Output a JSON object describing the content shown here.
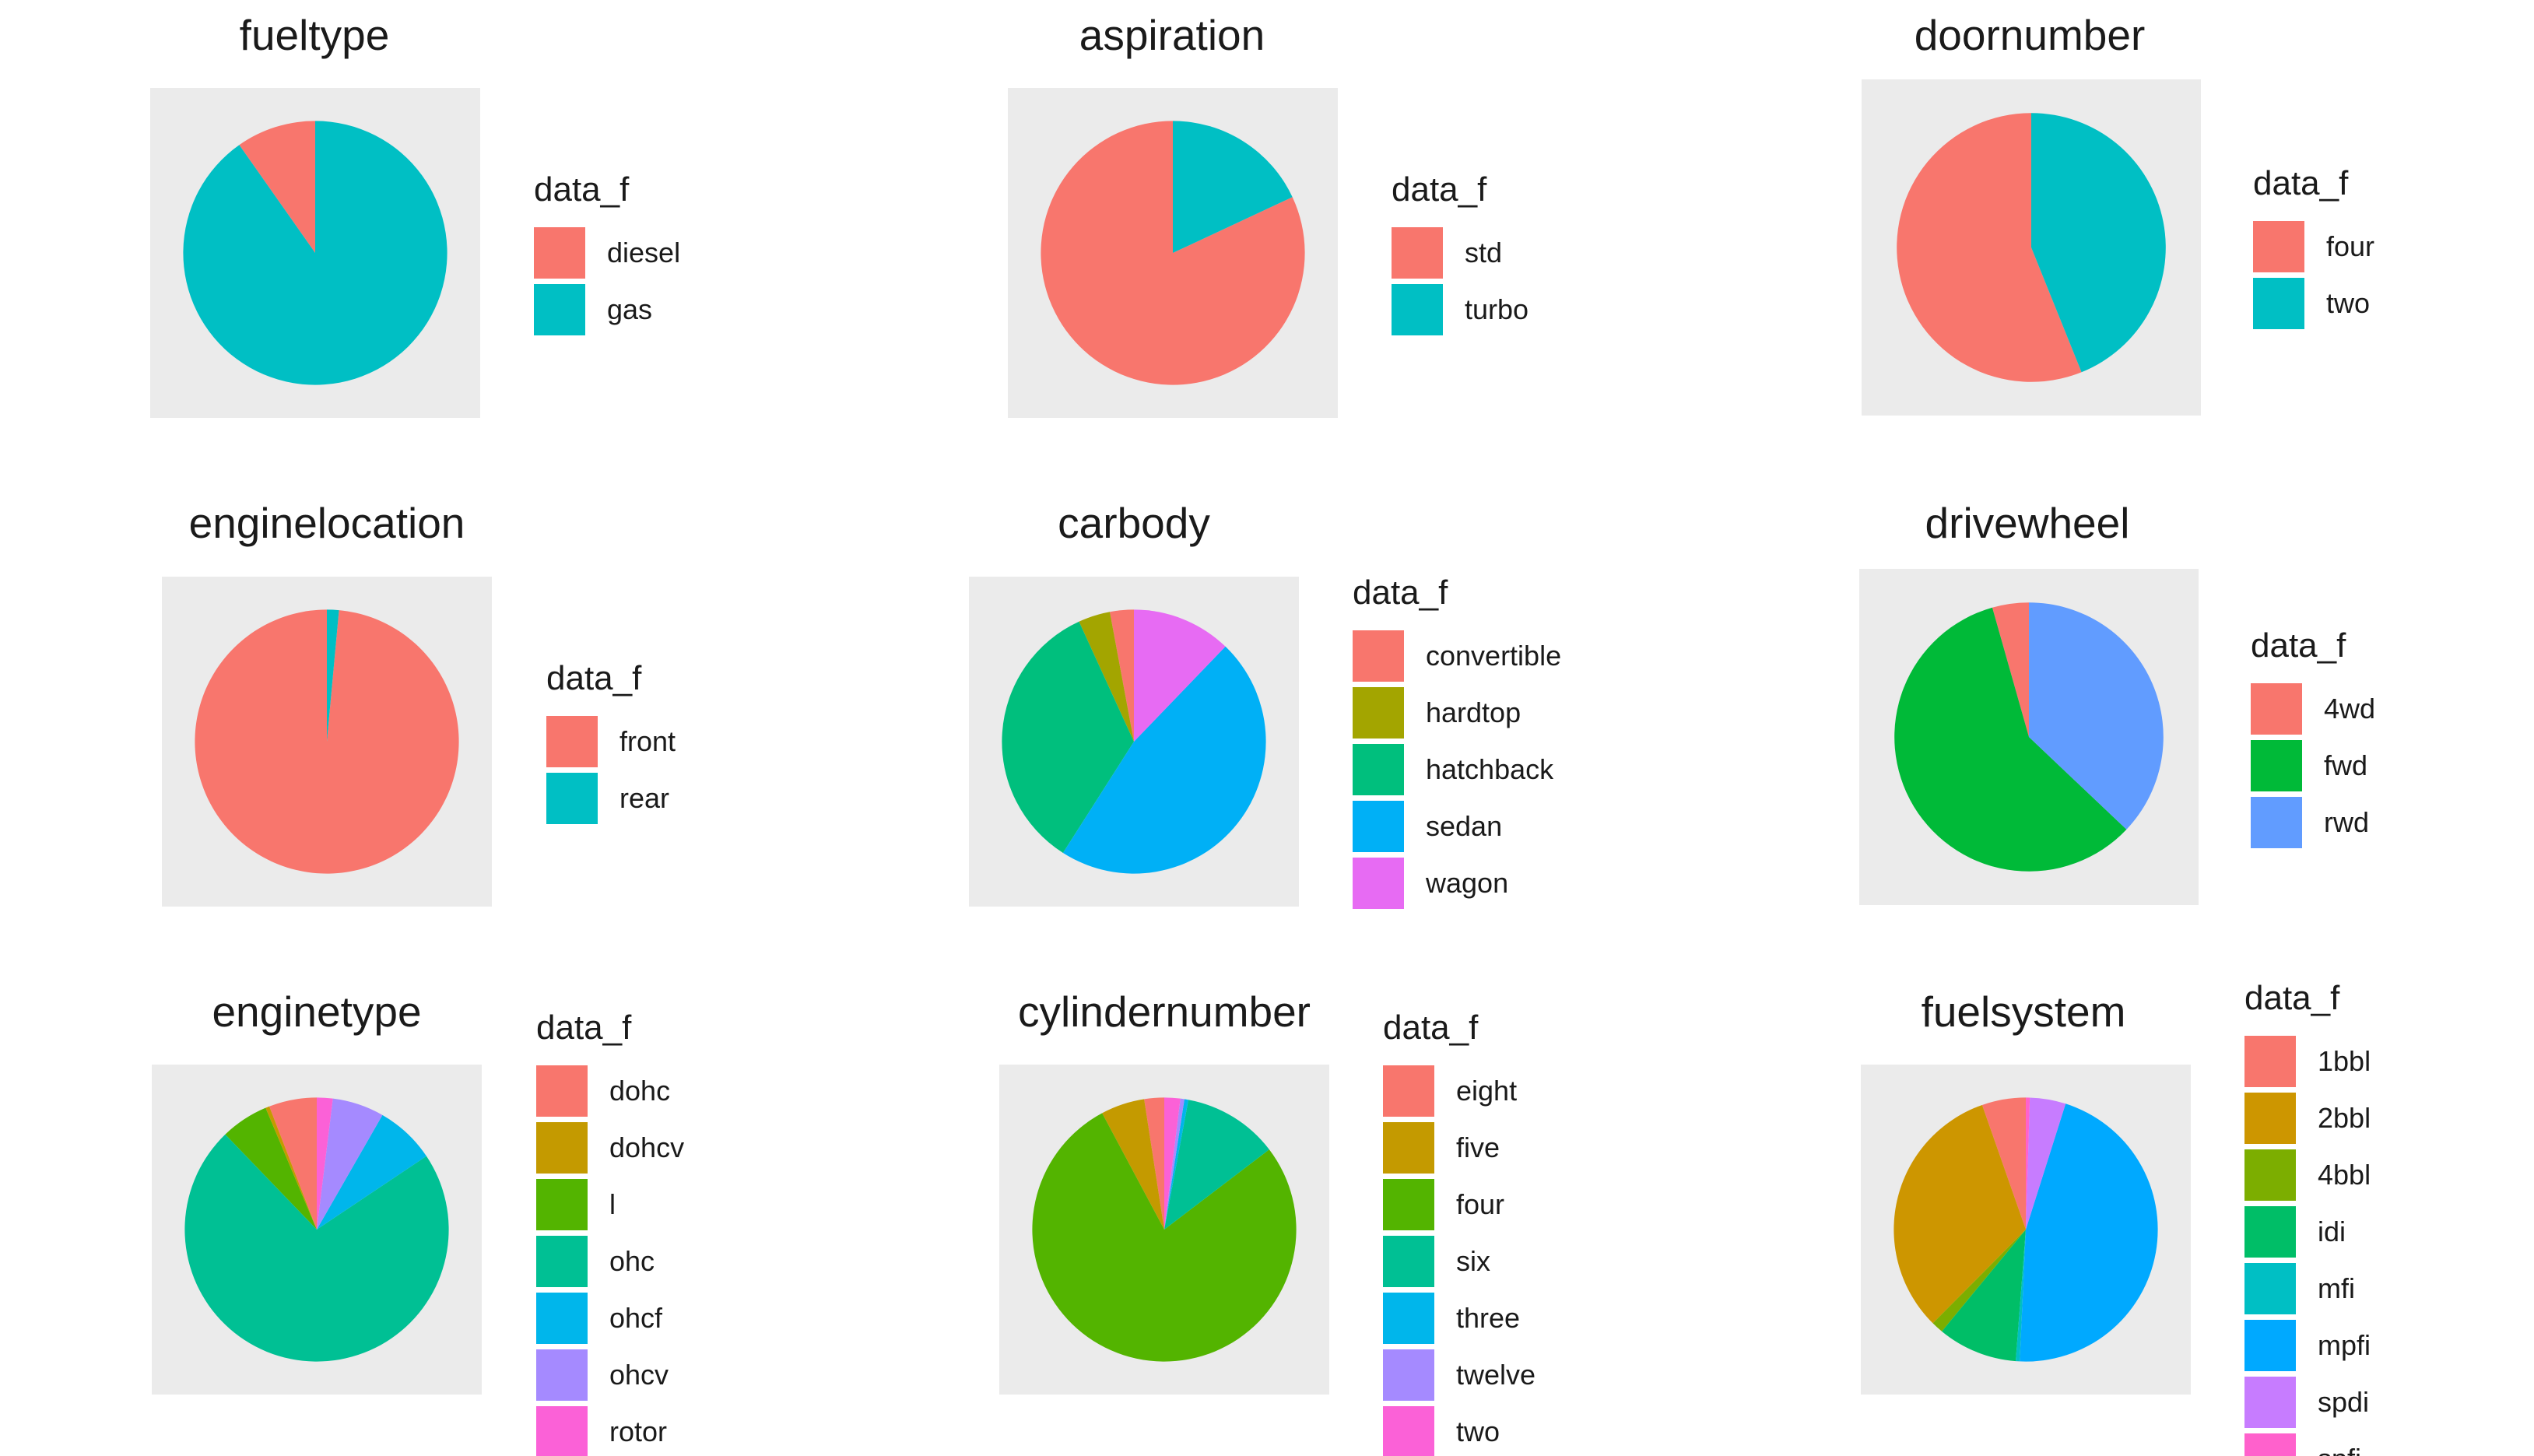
{
  "chart_data": [
    {
      "type": "pie",
      "title": "fueltype",
      "legend_title": "data_f",
      "legend_position": "right",
      "categories": [
        "diesel",
        "gas"
      ],
      "values": [
        20,
        185
      ],
      "colors": [
        "#F8766D",
        "#00BFC4"
      ]
    },
    {
      "type": "pie",
      "title": "aspiration",
      "legend_title": "data_f",
      "legend_position": "right",
      "categories": [
        "std",
        "turbo"
      ],
      "values": [
        168,
        37
      ],
      "colors": [
        "#F8766D",
        "#00BFC4"
      ]
    },
    {
      "type": "pie",
      "title": "doornumber",
      "legend_title": "data_f",
      "legend_position": "right",
      "categories": [
        "four",
        "two"
      ],
      "values": [
        115,
        90
      ],
      "colors": [
        "#F8766D",
        "#00BFC4"
      ]
    },
    {
      "type": "pie",
      "title": "enginelocation",
      "legend_title": "data_f",
      "legend_position": "right",
      "categories": [
        "front",
        "rear"
      ],
      "values": [
        202,
        3
      ],
      "colors": [
        "#F8766D",
        "#00BFC4"
      ]
    },
    {
      "type": "pie",
      "title": "carbody",
      "legend_title": "data_f",
      "legend_position": "right",
      "categories": [
        "convertible",
        "hardtop",
        "hatchback",
        "sedan",
        "wagon"
      ],
      "values": [
        6,
        8,
        70,
        96,
        25
      ],
      "colors": [
        "#F8766D",
        "#A3A500",
        "#00BF7D",
        "#00B0F6",
        "#E76BF3"
      ]
    },
    {
      "type": "pie",
      "title": "drivewheel",
      "legend_title": "data_f",
      "legend_position": "right",
      "categories": [
        "4wd",
        "fwd",
        "rwd"
      ],
      "values": [
        9,
        120,
        76
      ],
      "colors": [
        "#F8766D",
        "#00BA38",
        "#619CFF"
      ]
    },
    {
      "type": "pie",
      "title": "enginetype",
      "legend_title": "data_f",
      "legend_position": "right",
      "categories": [
        "dohc",
        "dohcv",
        "l",
        "ohc",
        "ohcf",
        "ohcv",
        "rotor"
      ],
      "values": [
        12,
        1,
        12,
        148,
        15,
        13,
        4
      ],
      "colors": [
        "#F8766D",
        "#C49A00",
        "#53B400",
        "#00C094",
        "#00B6EB",
        "#A58AFF",
        "#FB61D7"
      ]
    },
    {
      "type": "pie",
      "title": "cylindernumber",
      "legend_title": "data_f",
      "legend_position": "right",
      "categories": [
        "eight",
        "five",
        "four",
        "six",
        "three",
        "twelve",
        "two"
      ],
      "values": [
        5,
        11,
        159,
        24,
        1,
        1,
        4
      ],
      "colors": [
        "#F8766D",
        "#C49A00",
        "#53B400",
        "#00C094",
        "#00B6EB",
        "#A58AFF",
        "#FB61D7"
      ]
    },
    {
      "type": "pie",
      "title": "fuelsystem",
      "legend_title": "data_f",
      "legend_position": "right",
      "categories": [
        "1bbl",
        "2bbl",
        "4bbl",
        "idi",
        "mfi",
        "mpfi",
        "spdi",
        "spfi"
      ],
      "values": [
        11,
        66,
        3,
        20,
        1,
        94,
        9,
        1
      ],
      "colors": [
        "#F8766D",
        "#CD9600",
        "#7CAE00",
        "#00BE67",
        "#00BFC4",
        "#00A9FF",
        "#C77CFF",
        "#FF61CC"
      ]
    }
  ]
}
